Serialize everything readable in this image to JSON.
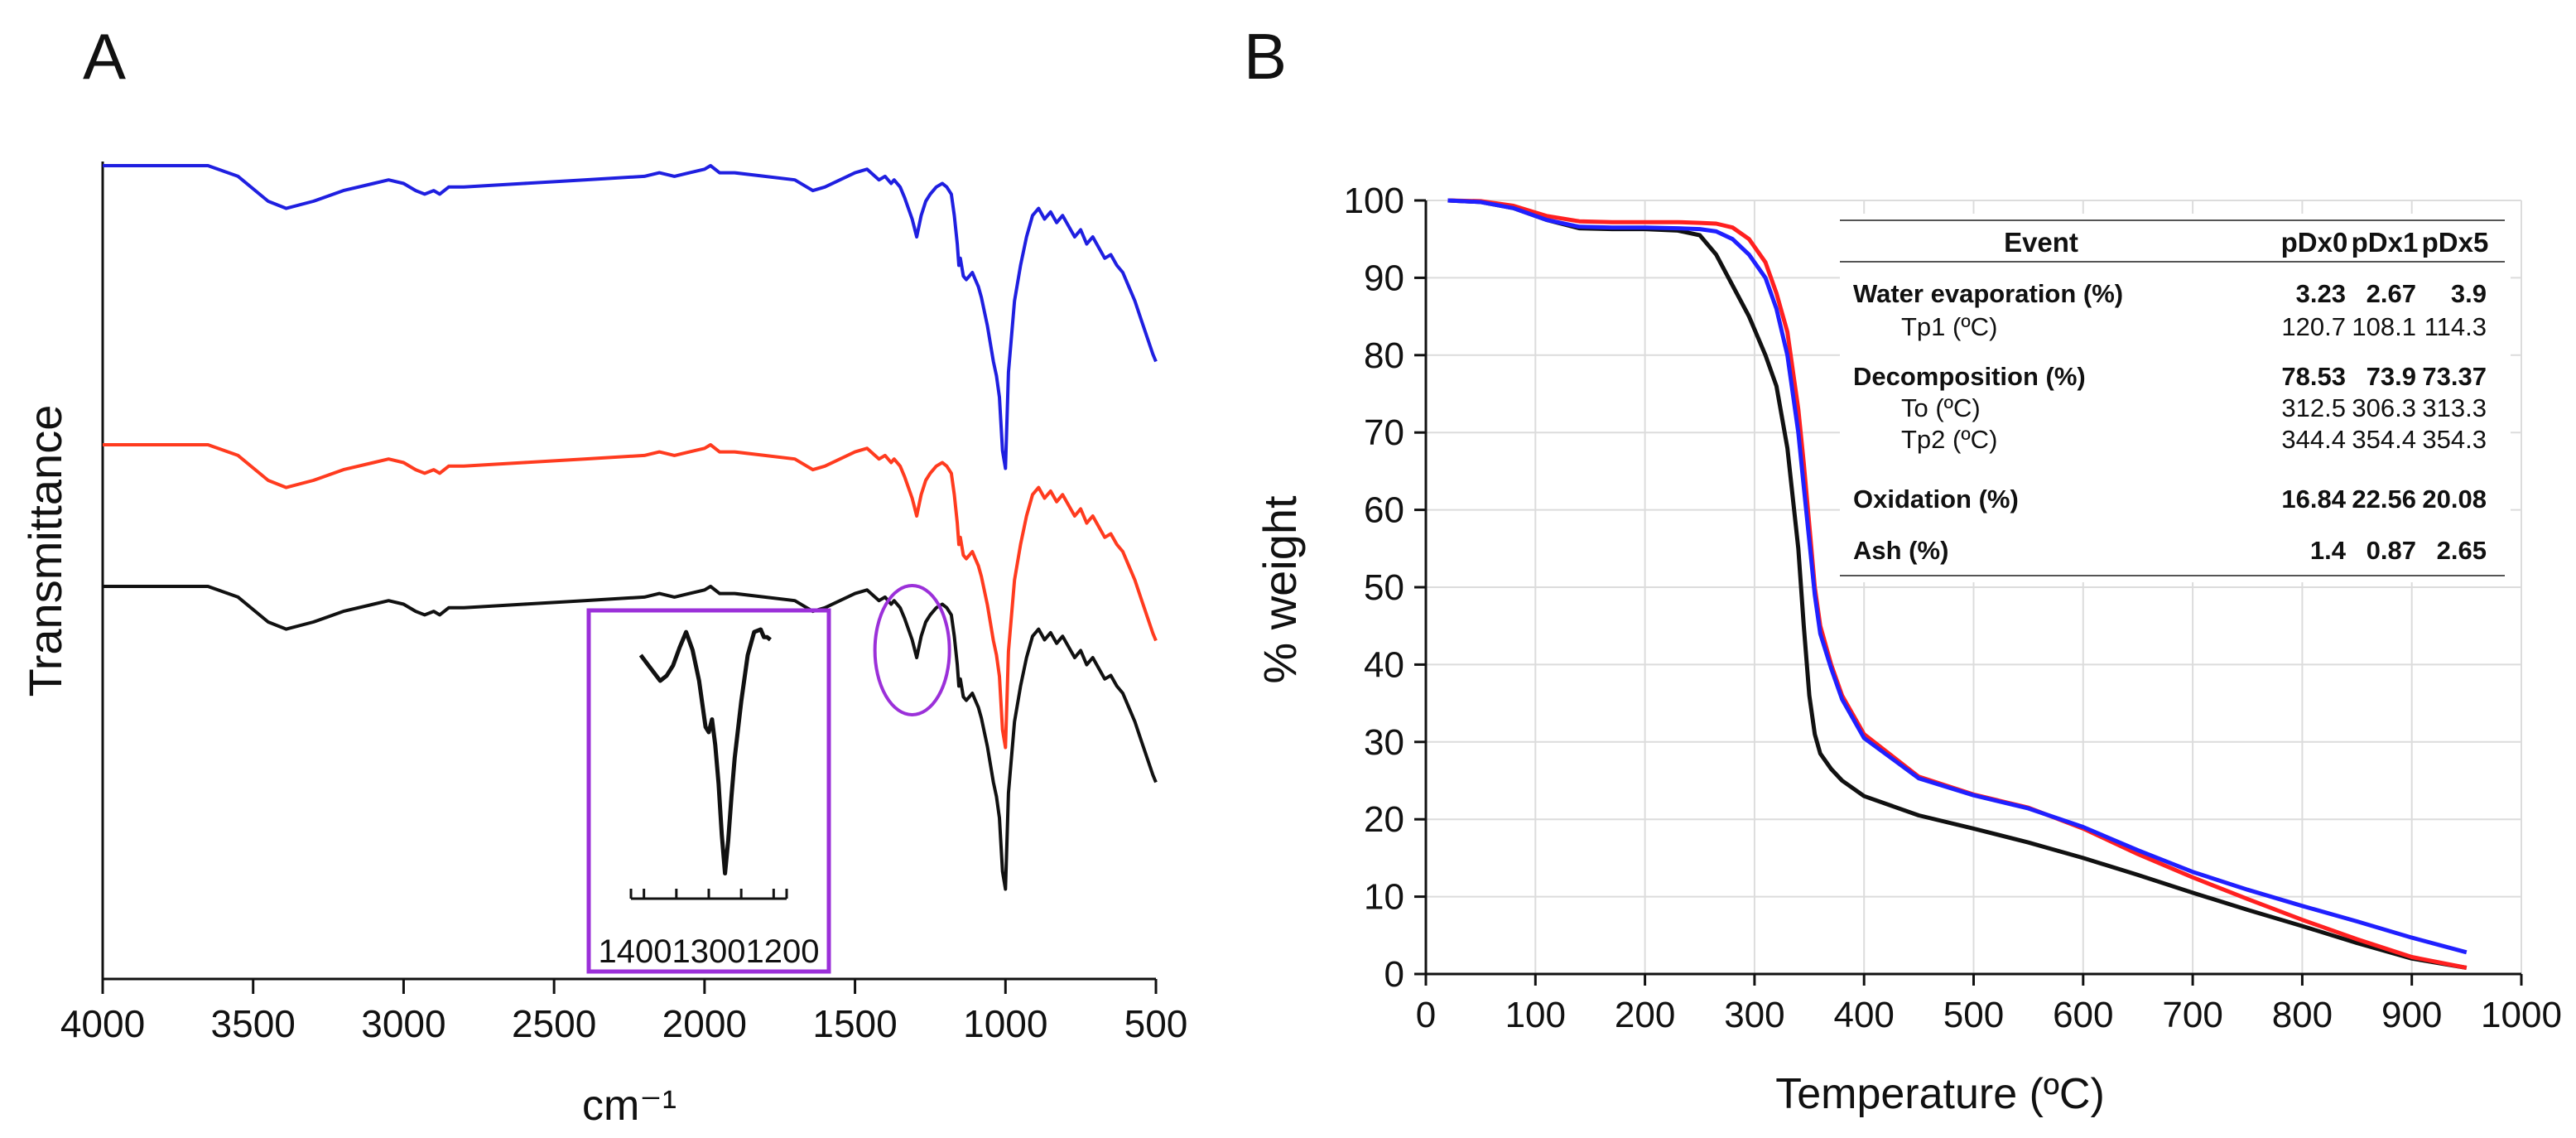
{
  "chart_data": [
    {
      "type": "line",
      "panel_label": "A",
      "xlabel": "cm⁻¹",
      "ylabel": "Transmittance",
      "xlim": [
        4000,
        500
      ],
      "x_ticks": [
        4000,
        3500,
        3000,
        2500,
        2000,
        1500,
        1000,
        500
      ],
      "y_units": "relative transmittance with vertical offsets (no y tick labels shown)",
      "series": [
        {
          "color": "#1f1fe0",
          "x": [
            4000,
            3750,
            3650,
            3550,
            3450,
            3390,
            3300,
            3200,
            3100,
            3050,
            3000,
            2960,
            2930,
            2900,
            2880,
            2850,
            2800,
            2600,
            2400,
            2200,
            2150,
            2100,
            2050,
            2000,
            1980,
            1950,
            1900,
            1800,
            1700,
            1660,
            1640,
            1600,
            1550,
            1500,
            1460,
            1420,
            1400,
            1380,
            1370,
            1350,
            1335,
            1310,
            1295,
            1280,
            1265,
            1250,
            1230,
            1210,
            1195,
            1180,
            1170,
            1160,
            1155,
            1150,
            1140,
            1130,
            1120,
            1110,
            1100,
            1090,
            1080,
            1060,
            1050,
            1040,
            1030,
            1020,
            1010,
            1000,
            990,
            970,
            950,
            930,
            910,
            890,
            870,
            850,
            830,
            810,
            790,
            770,
            750,
            730,
            710,
            690,
            670,
            650,
            630,
            610,
            590,
            570,
            550,
            530,
            510,
            500
          ],
          "y": [
            1.0,
            1.0,
            1.0,
            0.97,
            0.9,
            0.88,
            0.9,
            0.93,
            0.95,
            0.96,
            0.95,
            0.93,
            0.92,
            0.93,
            0.92,
            0.94,
            0.94,
            0.95,
            0.96,
            0.97,
            0.98,
            0.97,
            0.98,
            0.99,
            1.0,
            0.98,
            0.98,
            0.97,
            0.96,
            0.94,
            0.93,
            0.94,
            0.96,
            0.98,
            0.99,
            0.96,
            0.97,
            0.95,
            0.96,
            0.94,
            0.91,
            0.85,
            0.8,
            0.86,
            0.9,
            0.92,
            0.94,
            0.95,
            0.94,
            0.92,
            0.86,
            0.78,
            0.72,
            0.74,
            0.69,
            0.68,
            0.69,
            0.7,
            0.68,
            0.66,
            0.63,
            0.55,
            0.5,
            0.45,
            0.41,
            0.35,
            0.2,
            0.15,
            0.42,
            0.62,
            0.72,
            0.8,
            0.86,
            0.88,
            0.85,
            0.87,
            0.84,
            0.86,
            0.83,
            0.8,
            0.82,
            0.78,
            0.8,
            0.77,
            0.74,
            0.75,
            0.72,
            0.7,
            0.66,
            0.62,
            0.57,
            0.52,
            0.47,
            0.45
          ]
        },
        {
          "color": "#ff3b1f",
          "x": [
            4000,
            3750,
            3650,
            3550,
            3450,
            3390,
            3300,
            3200,
            3100,
            3050,
            3000,
            2960,
            2930,
            2900,
            2880,
            2850,
            2800,
            2600,
            2400,
            2200,
            2150,
            2100,
            2050,
            2000,
            1980,
            1950,
            1900,
            1800,
            1700,
            1660,
            1640,
            1600,
            1550,
            1500,
            1460,
            1420,
            1400,
            1380,
            1370,
            1350,
            1335,
            1310,
            1295,
            1280,
            1265,
            1250,
            1230,
            1210,
            1195,
            1180,
            1170,
            1160,
            1155,
            1150,
            1140,
            1130,
            1120,
            1110,
            1100,
            1090,
            1080,
            1060,
            1050,
            1040,
            1030,
            1020,
            1010,
            1000,
            990,
            970,
            950,
            930,
            910,
            890,
            870,
            850,
            830,
            810,
            790,
            770,
            750,
            730,
            710,
            690,
            670,
            650,
            630,
            610,
            590,
            570,
            550,
            530,
            510,
            500
          ],
          "y": [
            1.0,
            1.0,
            1.0,
            0.97,
            0.9,
            0.88,
            0.9,
            0.93,
            0.95,
            0.96,
            0.95,
            0.93,
            0.92,
            0.93,
            0.92,
            0.94,
            0.94,
            0.95,
            0.96,
            0.97,
            0.98,
            0.97,
            0.98,
            0.99,
            1.0,
            0.98,
            0.98,
            0.97,
            0.96,
            0.94,
            0.93,
            0.94,
            0.96,
            0.98,
            0.99,
            0.96,
            0.97,
            0.95,
            0.96,
            0.94,
            0.91,
            0.85,
            0.8,
            0.86,
            0.9,
            0.92,
            0.94,
            0.95,
            0.94,
            0.92,
            0.86,
            0.78,
            0.72,
            0.74,
            0.69,
            0.68,
            0.69,
            0.7,
            0.68,
            0.66,
            0.63,
            0.55,
            0.5,
            0.45,
            0.41,
            0.35,
            0.2,
            0.15,
            0.42,
            0.62,
            0.72,
            0.8,
            0.86,
            0.88,
            0.85,
            0.87,
            0.84,
            0.86,
            0.83,
            0.8,
            0.82,
            0.78,
            0.8,
            0.77,
            0.74,
            0.75,
            0.72,
            0.7,
            0.66,
            0.62,
            0.57,
            0.52,
            0.47,
            0.45
          ]
        },
        {
          "color": "#111111",
          "x": [
            4000,
            3750,
            3650,
            3550,
            3450,
            3390,
            3300,
            3200,
            3100,
            3050,
            3000,
            2960,
            2930,
            2900,
            2880,
            2850,
            2800,
            2600,
            2400,
            2200,
            2150,
            2100,
            2050,
            2000,
            1980,
            1950,
            1900,
            1800,
            1700,
            1660,
            1640,
            1600,
            1550,
            1500,
            1460,
            1420,
            1400,
            1380,
            1370,
            1350,
            1335,
            1310,
            1295,
            1280,
            1265,
            1250,
            1230,
            1210,
            1195,
            1180,
            1170,
            1160,
            1155,
            1150,
            1140,
            1130,
            1120,
            1110,
            1100,
            1090,
            1080,
            1060,
            1050,
            1040,
            1030,
            1020,
            1010,
            1000,
            990,
            970,
            950,
            930,
            910,
            890,
            870,
            850,
            830,
            810,
            790,
            770,
            750,
            730,
            710,
            690,
            670,
            650,
            630,
            610,
            590,
            570,
            550,
            530,
            510,
            500
          ],
          "y": [
            1.0,
            1.0,
            1.0,
            0.97,
            0.9,
            0.88,
            0.9,
            0.93,
            0.95,
            0.96,
            0.95,
            0.93,
            0.92,
            0.93,
            0.92,
            0.94,
            0.94,
            0.95,
            0.96,
            0.97,
            0.98,
            0.97,
            0.98,
            0.99,
            1.0,
            0.98,
            0.98,
            0.97,
            0.96,
            0.94,
            0.93,
            0.94,
            0.96,
            0.98,
            0.99,
            0.96,
            0.97,
            0.95,
            0.96,
            0.94,
            0.91,
            0.85,
            0.8,
            0.86,
            0.9,
            0.92,
            0.94,
            0.95,
            0.94,
            0.92,
            0.86,
            0.78,
            0.72,
            0.74,
            0.69,
            0.68,
            0.69,
            0.7,
            0.68,
            0.66,
            0.63,
            0.55,
            0.5,
            0.45,
            0.41,
            0.35,
            0.2,
            0.15,
            0.42,
            0.62,
            0.72,
            0.8,
            0.86,
            0.88,
            0.85,
            0.87,
            0.84,
            0.86,
            0.83,
            0.8,
            0.82,
            0.78,
            0.8,
            0.77,
            0.74,
            0.75,
            0.72,
            0.7,
            0.66,
            0.62,
            0.57,
            0.52,
            0.47,
            0.45
          ]
        }
      ],
      "highlight": {
        "shape": "ellipse",
        "color": "#9b30d9",
        "x_center": 1310
      },
      "inset": {
        "border_color": "#9b30d9",
        "x_ticks": [
          1400,
          1300,
          1200
        ],
        "x_tick_labels_text": "140013001200",
        "xlim": [
          1420,
          1180
        ],
        "x": [
          1405,
          1390,
          1375,
          1365,
          1355,
          1345,
          1335,
          1325,
          1315,
          1305,
          1300,
          1295,
          1290,
          1285,
          1280,
          1275,
          1270,
          1265,
          1260,
          1250,
          1240,
          1230,
          1220,
          1215,
          1210,
          1205
        ],
        "y": [
          0.9,
          0.85,
          0.8,
          0.82,
          0.86,
          0.93,
          0.99,
          0.92,
          0.8,
          0.62,
          0.6,
          0.65,
          0.55,
          0.4,
          0.2,
          0.05,
          0.18,
          0.35,
          0.5,
          0.72,
          0.9,
          0.99,
          1.0,
          0.97,
          0.97,
          0.96
        ]
      }
    },
    {
      "type": "line",
      "panel_label": "B",
      "xlabel": "Temperature (ºC)",
      "ylabel": "% weight",
      "xlim": [
        0,
        1000
      ],
      "ylim": [
        0,
        100
      ],
      "x_ticks": [
        0,
        100,
        200,
        300,
        400,
        500,
        600,
        700,
        800,
        900,
        1000
      ],
      "y_ticks": [
        0,
        10,
        20,
        30,
        40,
        50,
        60,
        70,
        80,
        90,
        100
      ],
      "grid": true,
      "series": [
        {
          "color": "#111111",
          "x": [
            20,
            50,
            80,
            110,
            140,
            170,
            200,
            230,
            250,
            265,
            280,
            295,
            310,
            320,
            330,
            340,
            345,
            350,
            355,
            360,
            370,
            380,
            400,
            450,
            500,
            550,
            600,
            650,
            700,
            750,
            800,
            850,
            900,
            950
          ],
          "y": [
            100,
            99.8,
            99,
            97.5,
            96.4,
            96.3,
            96.3,
            96.1,
            95.5,
            93,
            89,
            85,
            80,
            76,
            68,
            55,
            45,
            36,
            31,
            28.5,
            26.5,
            25,
            23,
            20.5,
            18.8,
            17,
            15,
            12.8,
            10.5,
            8.3,
            6.2,
            4,
            2,
            0.8
          ]
        },
        {
          "color": "#ff2020",
          "x": [
            20,
            50,
            80,
            110,
            140,
            170,
            200,
            230,
            250,
            265,
            280,
            295,
            310,
            320,
            330,
            340,
            345,
            350,
            355,
            360,
            370,
            380,
            400,
            450,
            500,
            550,
            600,
            650,
            700,
            750,
            800,
            850,
            900,
            950
          ],
          "y": [
            100,
            99.9,
            99.3,
            98,
            97.3,
            97.2,
            97.2,
            97.2,
            97.1,
            97,
            96.5,
            95,
            92,
            88,
            83,
            73,
            66,
            58,
            50,
            45,
            40,
            36,
            31,
            25.5,
            23.2,
            21.5,
            18.8,
            15.5,
            12.5,
            9.7,
            7,
            4.5,
            2.2,
            0.8
          ]
        },
        {
          "color": "#2020ff",
          "x": [
            20,
            50,
            80,
            110,
            140,
            170,
            200,
            230,
            250,
            265,
            280,
            295,
            310,
            320,
            330,
            340,
            345,
            350,
            355,
            360,
            370,
            380,
            400,
            450,
            500,
            550,
            600,
            650,
            700,
            750,
            800,
            850,
            900,
            950
          ],
          "y": [
            100,
            99.8,
            99,
            97.5,
            96.6,
            96.5,
            96.5,
            96.4,
            96.3,
            96,
            95,
            93,
            90,
            86,
            80,
            70,
            63,
            56,
            49,
            44,
            39.5,
            35.5,
            30.5,
            25.3,
            23.1,
            21.4,
            19,
            16,
            13.2,
            10.9,
            8.8,
            6.8,
            4.7,
            2.8
          ]
        }
      ],
      "table": {
        "headers": [
          "Event",
          "pDx0",
          "pDx1",
          "pDx5"
        ],
        "rows": [
          {
            "label": "Water evaporation (%)",
            "bold": true,
            "values": [
              "3.23",
              "2.67",
              "3.9"
            ]
          },
          {
            "label": "Tp1 (ºC)",
            "bold": false,
            "values": [
              "120.7",
              "108.1",
              "114.3"
            ]
          },
          {
            "label": "Decomposition (%)",
            "bold": true,
            "values": [
              "78.53",
              "73.9",
              "73.37"
            ]
          },
          {
            "label": "To (ºC)",
            "bold": false,
            "values": [
              "312.5",
              "306.3",
              "313.3"
            ]
          },
          {
            "label": "Tp2 (ºC)",
            "bold": false,
            "values": [
              "344.4",
              "354.4",
              "354.3"
            ]
          },
          {
            "label": "Oxidation (%)",
            "bold": true,
            "values": [
              "16.84",
              "22.56",
              "20.08"
            ]
          },
          {
            "label": "Ash (%)",
            "bold": true,
            "values": [
              "1.4",
              "0.87",
              "2.65"
            ]
          }
        ]
      }
    }
  ]
}
